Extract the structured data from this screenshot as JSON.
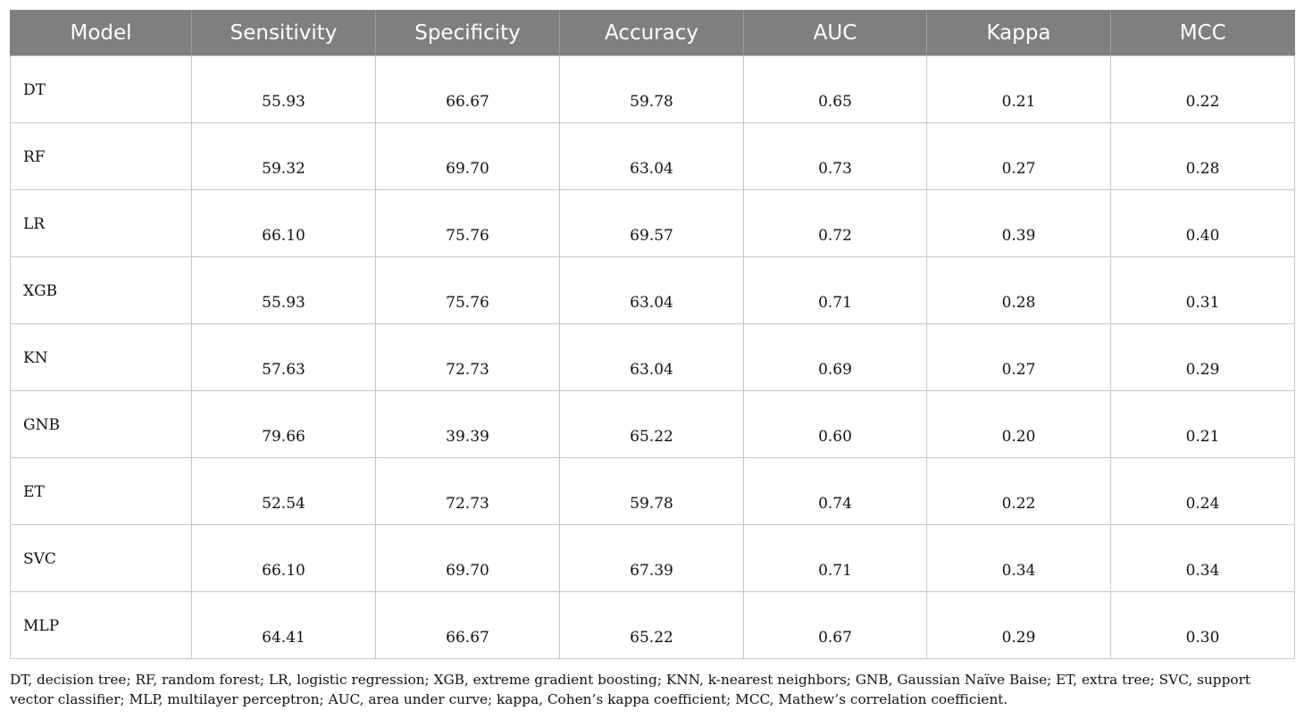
{
  "table": {
    "headers": [
      "Model",
      "Sensitivity",
      "Specificity",
      "Accuracy",
      "AUC",
      "Kappa",
      "MCC"
    ],
    "rows": [
      {
        "model": "DT",
        "sensitivity": "55.93",
        "specificity": "66.67",
        "accuracy": "59.78",
        "auc": "0.65",
        "kappa": "0.21",
        "mcc": "0.22"
      },
      {
        "model": "RF",
        "sensitivity": "59.32",
        "specificity": "69.70",
        "accuracy": "63.04",
        "auc": "0.73",
        "kappa": "0.27",
        "mcc": "0.28"
      },
      {
        "model": "LR",
        "sensitivity": "66.10",
        "specificity": "75.76",
        "accuracy": "69.57",
        "auc": "0.72",
        "kappa": "0.39",
        "mcc": "0.40"
      },
      {
        "model": "XGB",
        "sensitivity": "55.93",
        "specificity": "75.76",
        "accuracy": "63.04",
        "auc": "0.71",
        "kappa": "0.28",
        "mcc": "0.31"
      },
      {
        "model": "KN",
        "sensitivity": "57.63",
        "specificity": "72.73",
        "accuracy": "63.04",
        "auc": "0.69",
        "kappa": "0.27",
        "mcc": "0.29"
      },
      {
        "model": "GNB",
        "sensitivity": "79.66",
        "specificity": "39.39",
        "accuracy": "65.22",
        "auc": "0.60",
        "kappa": "0.20",
        "mcc": "0.21"
      },
      {
        "model": "ET",
        "sensitivity": "52.54",
        "specificity": "72.73",
        "accuracy": "59.78",
        "auc": "0.74",
        "kappa": "0.22",
        "mcc": "0.24"
      },
      {
        "model": "SVC",
        "sensitivity": "66.10",
        "specificity": "69.70",
        "accuracy": "67.39",
        "auc": "0.71",
        "kappa": "0.34",
        "mcc": "0.34"
      },
      {
        "model": "MLP",
        "sensitivity": "64.41",
        "specificity": "66.67",
        "accuracy": "65.22",
        "auc": "0.67",
        "kappa": "0.29",
        "mcc": "0.30"
      }
    ]
  },
  "footnote": "DT, decision tree; RF, random forest; LR, logistic regression; XGB, extreme gradient boosting; KNN, k-nearest neighbors; GNB, Gaussian Naïve Baise; ET, extra tree; SVC, support vector classifier; MLP, multilayer perceptron; AUC, area under curve; kappa, Cohen’s kappa coefficient; MCC, Mathew’s correlation coefficient.",
  "colors": {
    "header_background": "#7f7f7e",
    "header_text": "#ffffff",
    "grid_line": "#c6c6c6"
  }
}
